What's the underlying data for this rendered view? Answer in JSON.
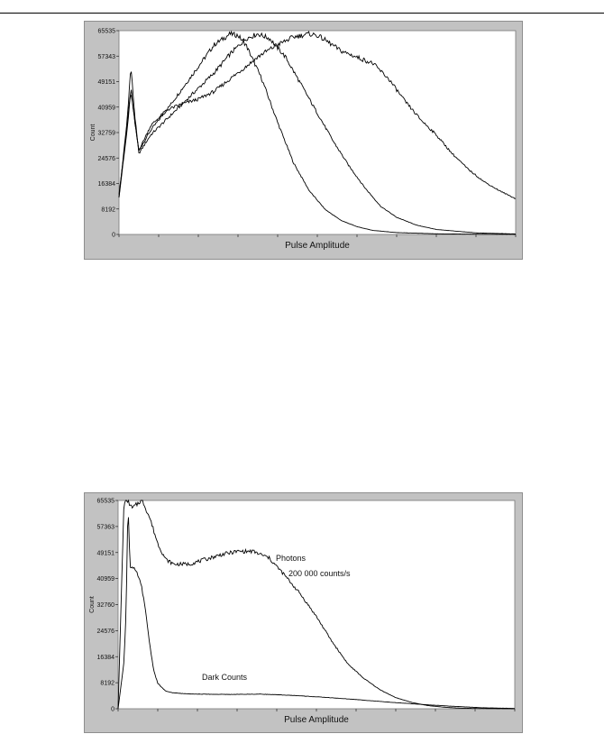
{
  "chart_data": [
    {
      "type": "line",
      "title": "",
      "xlabel": "Pulse Amplitude",
      "ylabel": "Count",
      "yticks": [
        "65535",
        "57343",
        "49151",
        "40959",
        "32759",
        "24576",
        "16384",
        "8192",
        "0"
      ],
      "ylim": [
        0,
        65535
      ],
      "xlim": [
        0,
        100
      ],
      "grid": false,
      "series": [
        {
          "x": [
            0,
            2,
            3,
            4,
            5,
            8,
            12,
            16,
            20,
            24,
            28,
            30,
            32,
            36,
            40,
            44,
            48,
            52,
            56,
            60,
            64,
            70,
            80,
            90,
            100
          ],
          "values": [
            13000,
            34000,
            47000,
            36000,
            27000,
            33500,
            40000,
            47000,
            54000,
            61000,
            64500,
            64000,
            61000,
            50000,
            36000,
            23000,
            14000,
            8000,
            4500,
            2500,
            1300,
            600,
            200,
            80,
            30
          ]
        },
        {
          "x": [
            0,
            2,
            3,
            4,
            5,
            8,
            12,
            16,
            20,
            24,
            28,
            32,
            35,
            38,
            42,
            46,
            50,
            54,
            58,
            62,
            66,
            70,
            75,
            80,
            90,
            100
          ],
          "values": [
            12000,
            36000,
            54000,
            38000,
            26000,
            32000,
            37000,
            42000,
            47000,
            52000,
            58000,
            63000,
            64500,
            63000,
            57000,
            48000,
            39000,
            30000,
            22000,
            15000,
            9000,
            5500,
            3000,
            1600,
            500,
            150
          ]
        },
        {
          "x": [
            0,
            2,
            3,
            4,
            5,
            8,
            12,
            16,
            20,
            24,
            28,
            32,
            36,
            40,
            44,
            48,
            50,
            52,
            56,
            60,
            64,
            68,
            72,
            76,
            80,
            84,
            88,
            92,
            96,
            100
          ],
          "values": [
            12000,
            33000,
            46000,
            36000,
            27000,
            35000,
            40000,
            42000,
            43500,
            46000,
            50000,
            54000,
            58000,
            61000,
            63500,
            64500,
            64000,
            62500,
            59000,
            57000,
            55000,
            50000,
            43000,
            37000,
            32000,
            26000,
            21000,
            17000,
            14000,
            11500
          ]
        }
      ]
    },
    {
      "type": "line",
      "title": "",
      "xlabel": "Pulse Amplitude",
      "ylabel": "Count",
      "yticks": [
        "65535",
        "57363",
        "49151",
        "40959",
        "32760",
        "24576",
        "16384",
        "8192",
        "0"
      ],
      "ylim": [
        0,
        65535
      ],
      "xlim": [
        0,
        100
      ],
      "grid": false,
      "annotations": [
        "Photons",
        "200 000 counts/s",
        "Dark Counts"
      ],
      "series": [
        {
          "name": "Photons",
          "x": [
            0,
            1.5,
            2.5,
            3.5,
            4.5,
            6,
            8,
            10,
            12,
            14,
            18,
            22,
            26,
            30,
            34,
            38,
            42,
            46,
            50,
            54,
            58,
            62,
            66,
            70,
            74,
            78,
            82,
            86,
            90,
            95,
            100
          ],
          "values": [
            0,
            65535,
            65535,
            63000,
            64000,
            66000,
            60000,
            52000,
            47000,
            45500,
            45500,
            47000,
            48500,
            49500,
            49500,
            47500,
            42000,
            36000,
            29000,
            21000,
            14000,
            9500,
            6000,
            3500,
            2000,
            1000,
            500,
            200,
            100,
            50,
            0
          ]
        },
        {
          "name": "Dark Counts",
          "x": [
            0,
            1.5,
            2,
            2.5,
            3,
            4,
            5,
            6,
            7,
            8,
            9,
            10,
            12,
            14,
            16,
            20,
            28,
            36,
            44,
            52,
            60,
            68,
            76,
            84,
            92,
            100
          ],
          "values": [
            0,
            15000,
            30000,
            65535,
            45000,
            44000,
            42000,
            38000,
            30000,
            20000,
            12000,
            8000,
            5500,
            5000,
            4800,
            4600,
            4500,
            4600,
            4200,
            3600,
            2900,
            2100,
            1400,
            800,
            300,
            100
          ]
        }
      ]
    }
  ]
}
